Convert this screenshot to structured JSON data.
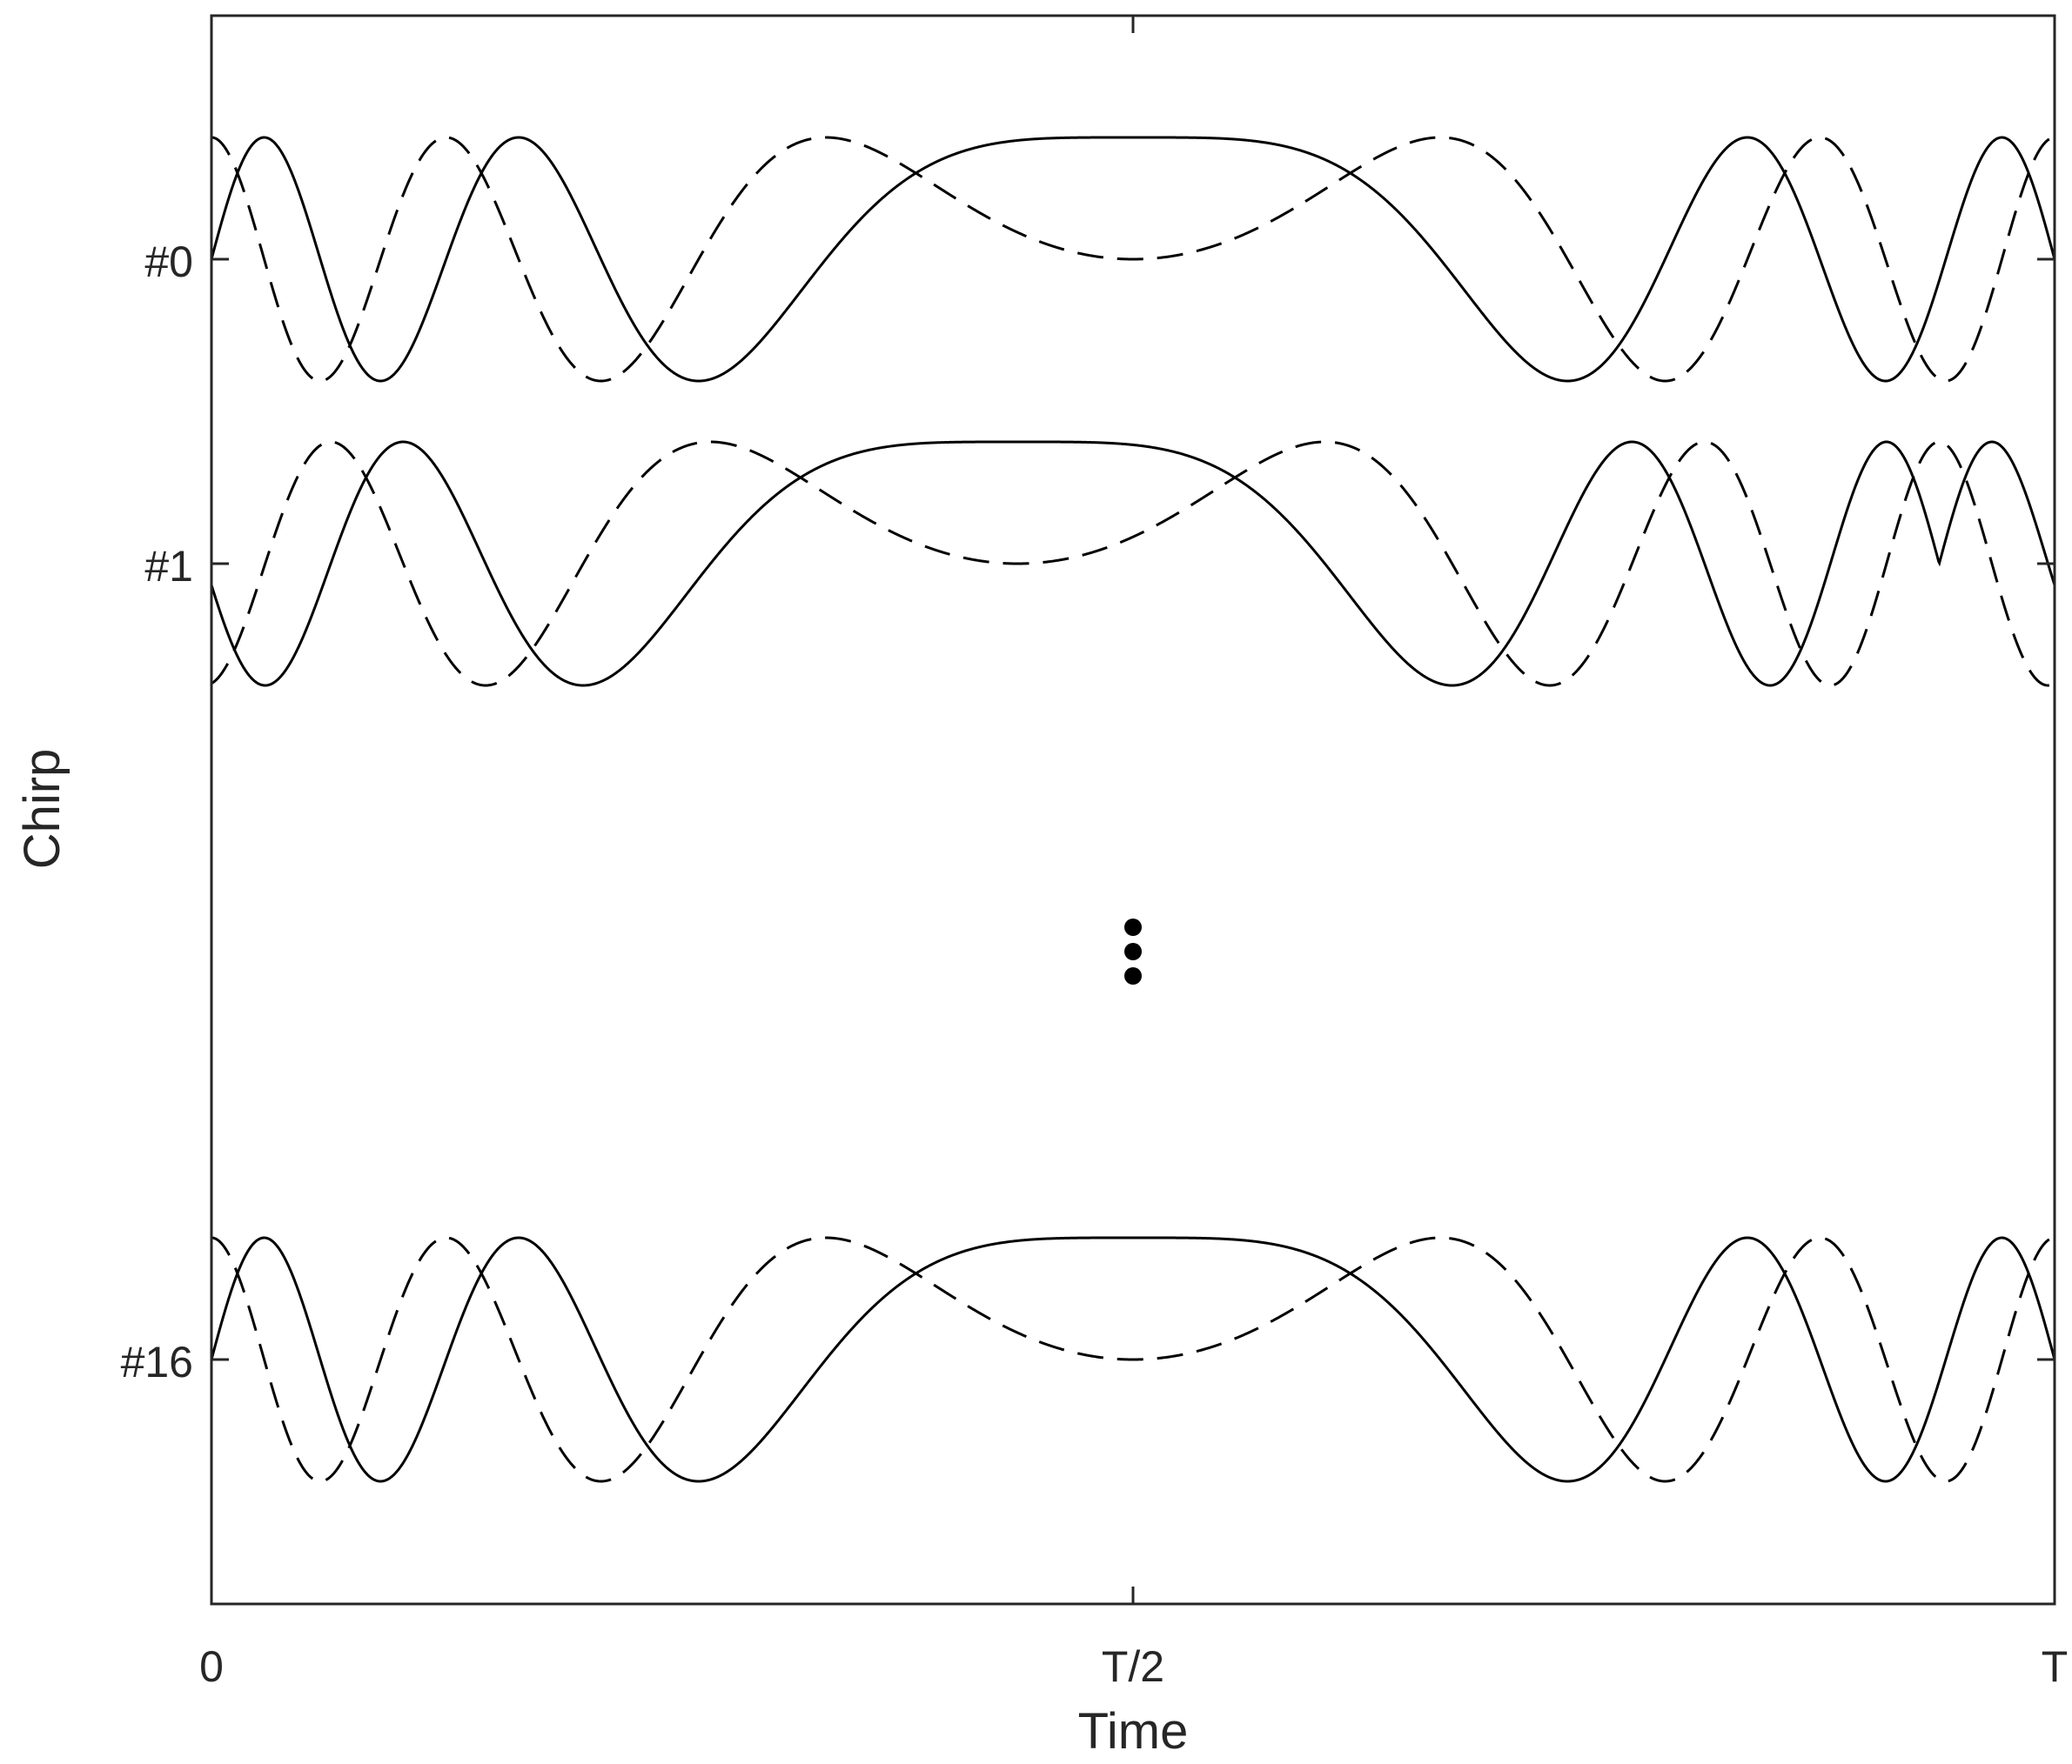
{
  "chart_data": {
    "type": "line",
    "xlabel": "Time",
    "ylabel": "Chirp",
    "x_ticks": [
      "0",
      "T/2",
      "T"
    ],
    "y_ticks": [
      "#0",
      "#1",
      "#16"
    ],
    "xlim": [
      0,
      1
    ],
    "grid": false,
    "legend": "none",
    "ellipsis": "vertical dots between chirp #1 and chirp #16 at T/2",
    "series": [
      {
        "chirp": 0,
        "component": "solid",
        "slope": 1,
        "phase_offset": 0.0
      },
      {
        "chirp": 0,
        "component": "dashed",
        "slope": 1,
        "phase_offset": 0.0
      },
      {
        "chirp": 1,
        "component": "solid",
        "slope": 1,
        "phase_offset": 0.0626
      },
      {
        "chirp": 1,
        "component": "dashed",
        "slope": 1,
        "phase_offset": 0.0626
      },
      {
        "chirp": 16,
        "component": "solid",
        "slope": -1,
        "phase_offset": 0.0
      },
      {
        "chirp": 16,
        "component": "dashed",
        "slope": -1,
        "phase_offset": 0.0
      }
    ],
    "chirp_rate_cycles": 18,
    "amplitude": 1
  },
  "colors": {
    "line": "#000000",
    "axis": "#262626",
    "background": "#ffffff"
  }
}
